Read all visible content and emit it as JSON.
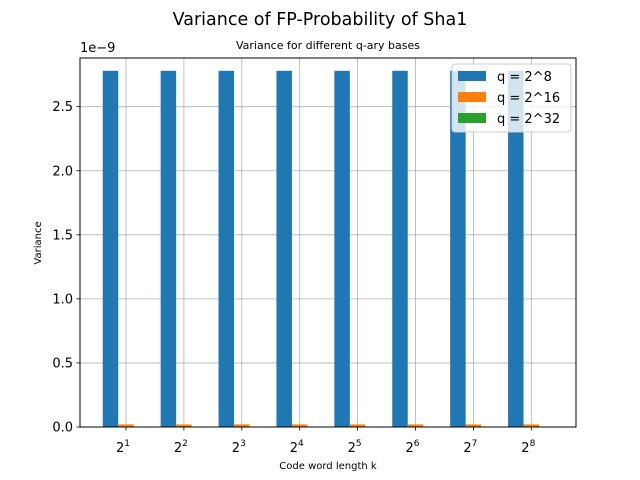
{
  "chart_data": {
    "type": "bar",
    "title": "Variance of FP-Probability of Sha1",
    "subtitle": "Variance for different q-ary bases",
    "xlabel": "Code word length k",
    "ylabel": "Variance",
    "y_scale_label": "1e−9",
    "ylim": [
      0,
      2.88
    ],
    "yticks": [
      0.0,
      0.5,
      1.0,
      1.5,
      2.0,
      2.5
    ],
    "ytick_labels": [
      "0.0",
      "0.5",
      "1.0",
      "1.5",
      "2.0",
      "2.5"
    ],
    "grid": true,
    "legend_position": "top-right",
    "categories": [
      {
        "base": "2",
        "exp": "1"
      },
      {
        "base": "2",
        "exp": "2"
      },
      {
        "base": "2",
        "exp": "3"
      },
      {
        "base": "2",
        "exp": "4"
      },
      {
        "base": "2",
        "exp": "5"
      },
      {
        "base": "2",
        "exp": "6"
      },
      {
        "base": "2",
        "exp": "7"
      },
      {
        "base": "2",
        "exp": "8"
      }
    ],
    "series": [
      {
        "name": "q = 2^8",
        "color": "#1f77b4",
        "values": [
          2.78,
          2.78,
          2.78,
          2.78,
          2.78,
          2.78,
          2.78,
          2.78
        ]
      },
      {
        "name": "q = 2^16",
        "color": "#ff7f0e",
        "values": [
          0.02,
          0.02,
          0.02,
          0.02,
          0.02,
          0.02,
          0.02,
          0.02
        ]
      },
      {
        "name": "q = 2^32",
        "color": "#2ca02c",
        "values": [
          0.0,
          0.0,
          0.0,
          0.0,
          0.0,
          0.0,
          0.0,
          0.0
        ]
      }
    ]
  }
}
